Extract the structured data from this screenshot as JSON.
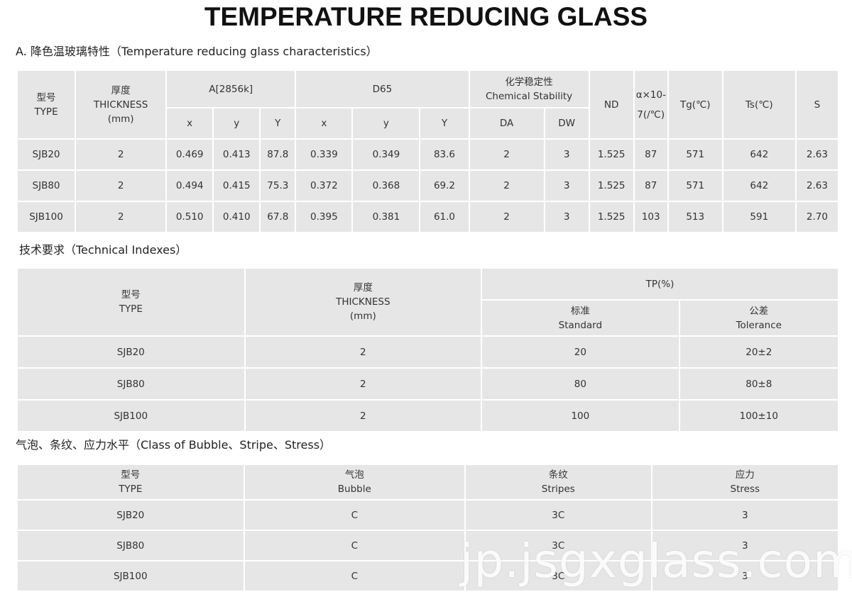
{
  "page": {
    "title": "TEMPERATURE REDUCING GLASS",
    "watermark": "jp.jsgxglass.com"
  },
  "characteristics": {
    "label": "A. 降色温玻璃特性（Temperature reducing glass characteristics）",
    "header": {
      "type_cn": "型号",
      "type_en": "TYPE",
      "thickness_cn": "厚度",
      "thickness_en": "THICKNESS",
      "thickness_unit": "(mm)",
      "a2856k": "A[2856k]",
      "d65": "D65",
      "chem_cn": "化学稳定性",
      "chem_en": "Chemical Stability",
      "nd": "ND",
      "alpha_line1": "α×10-",
      "alpha_line2": "7(/℃)",
      "tg": "Tg(℃)",
      "ts": "Ts(℃)",
      "s": "S",
      "x": "x",
      "y": "y",
      "Y": "Y",
      "da": "DA",
      "dw": "DW"
    },
    "rows": [
      {
        "type": "SJB20",
        "thickness": "2",
        "a_x": "0.469",
        "a_y": "0.413",
        "a_Y": "87.8",
        "d_x": "0.339",
        "d_y": "0.349",
        "d_Y": "83.6",
        "da": "2",
        "dw": "3",
        "nd": "1.525",
        "alpha": "87",
        "tg": "571",
        "ts": "642",
        "s": "2.63"
      },
      {
        "type": "SJB80",
        "thickness": "2",
        "a_x": "0.494",
        "a_y": "0.415",
        "a_Y": "75.3",
        "d_x": "0.372",
        "d_y": "0.368",
        "d_Y": "69.2",
        "da": "2",
        "dw": "3",
        "nd": "1.525",
        "alpha": "87",
        "tg": "571",
        "ts": "642",
        "s": "2.63"
      },
      {
        "type": "SJB100",
        "thickness": "2",
        "a_x": "0.510",
        "a_y": "0.410",
        "a_Y": "67.8",
        "d_x": "0.395",
        "d_y": "0.381",
        "d_Y": "61.0",
        "da": "2",
        "dw": "3",
        "nd": "1.525",
        "alpha": "103",
        "tg": "513",
        "ts": "591",
        "s": "2.70"
      }
    ]
  },
  "technical": {
    "label": "技术要求（Technical Indexes）",
    "header": {
      "type_cn": "型号",
      "type_en": "TYPE",
      "thickness_cn": "厚度",
      "thickness_en": "THICKNESS",
      "thickness_unit": "(mm)",
      "tp": "TP(%)",
      "standard_cn": "标准",
      "standard_en": "Standard",
      "tolerance_cn": "公差",
      "tolerance_en": "Tolerance"
    },
    "rows": [
      {
        "type": "SJB20",
        "thickness": "2",
        "standard": "20",
        "tolerance": "20±2"
      },
      {
        "type": "SJB80",
        "thickness": "2",
        "standard": "80",
        "tolerance": "80±8"
      },
      {
        "type": "SJB100",
        "thickness": "2",
        "standard": "100",
        "tolerance": "100±10"
      }
    ]
  },
  "bubble": {
    "label": "气泡、条纹、应力水平（Class of Bubble、Stripe、Stress）",
    "header": {
      "type_cn": "型号",
      "type_en": "TYPE",
      "bubble_cn": "气泡",
      "bubble_en": "Bubble",
      "stripes_cn": "条纹",
      "stripes_en": "Stripes",
      "stress_cn": "应力",
      "stress_en": "Stress"
    },
    "rows": [
      {
        "type": "SJB20",
        "bubble": "C",
        "stripes": "3C",
        "stress": "3"
      },
      {
        "type": "SJB80",
        "bubble": "C",
        "stripes": "3C",
        "stress": "3"
      },
      {
        "type": "SJB100",
        "bubble": "C",
        "stripes": "3C",
        "stress": "3"
      }
    ]
  }
}
